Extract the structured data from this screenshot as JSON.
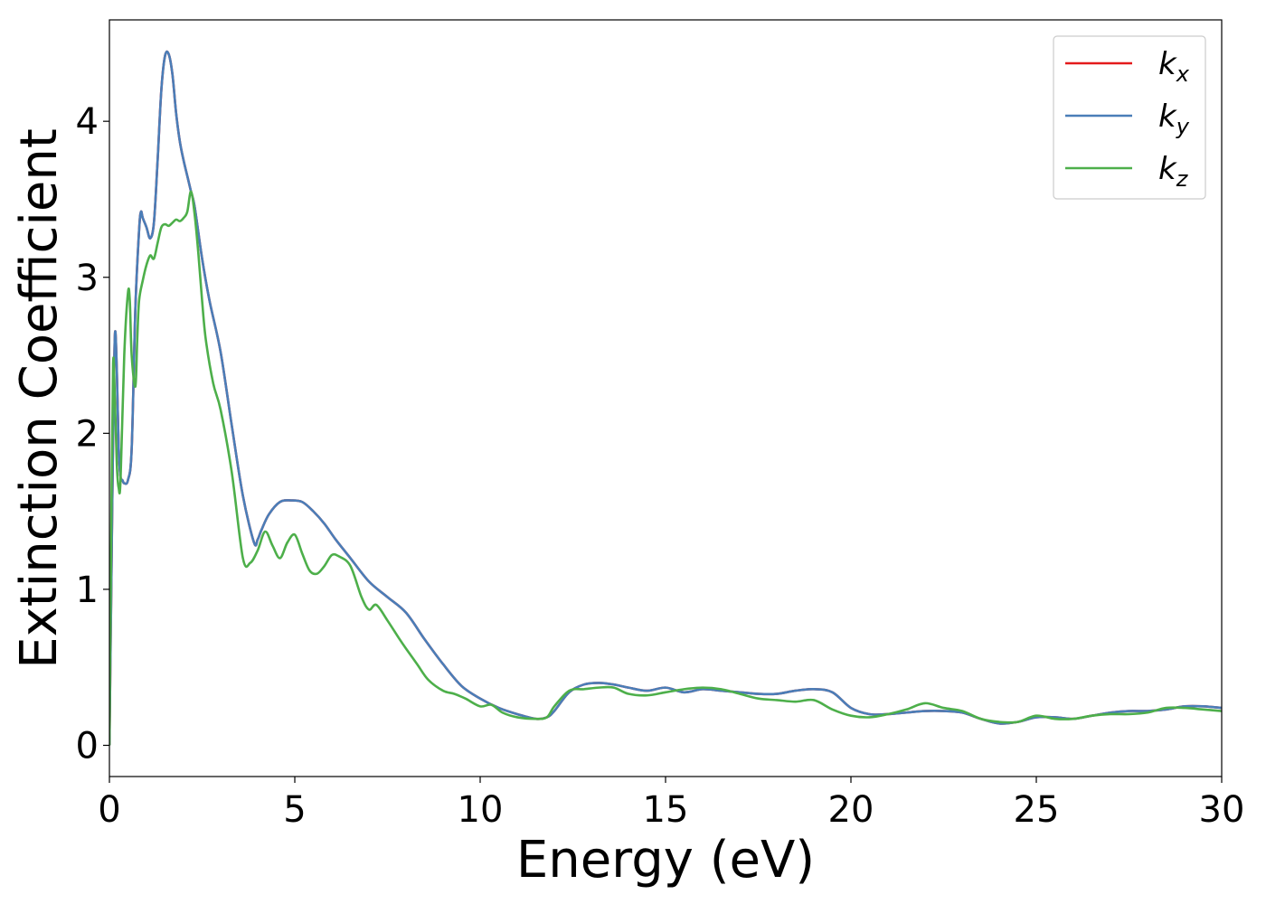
{
  "chart_data": {
    "type": "line",
    "title": "",
    "xlabel": "Energy (eV)",
    "ylabel": "Extinction Coefficient",
    "xlim": [
      0,
      30
    ],
    "ylim": [
      -0.2,
      4.65
    ],
    "xticks": [
      0,
      5,
      10,
      15,
      20,
      25,
      30
    ],
    "yticks": [
      0,
      1,
      2,
      3,
      4
    ],
    "grid": false,
    "legend_position": "top-right",
    "series": [
      {
        "name": "k_x",
        "base": "k",
        "sub": "x",
        "color": "#e41a1c",
        "x": [
          0,
          0.05,
          0.1,
          0.15,
          0.2,
          0.25,
          0.3,
          0.35,
          0.4,
          0.5,
          0.6,
          0.7,
          0.8,
          0.85,
          0.9,
          1.0,
          1.1,
          1.2,
          1.3,
          1.4,
          1.5,
          1.6,
          1.7,
          1.8,
          1.9,
          2.0,
          2.1,
          2.2,
          2.3,
          2.5,
          2.7,
          3.0,
          3.3,
          3.6,
          3.9,
          4.0,
          4.1,
          4.3,
          4.6,
          4.9,
          5.2,
          5.5,
          5.8,
          6.1,
          6.5,
          7.0,
          7.5,
          8.0,
          8.5,
          9.0,
          9.5,
          10.0,
          10.5,
          11.0,
          11.5,
          11.8,
          12.0,
          12.4,
          12.8,
          13.2,
          13.6,
          14.0,
          14.5,
          15.0,
          15.5,
          16.0,
          16.5,
          17.0,
          17.5,
          18.0,
          18.5,
          19.0,
          19.5,
          20.0,
          20.5,
          21.0,
          21.5,
          22.0,
          22.5,
          23.0,
          23.5,
          24.0,
          24.5,
          25.0,
          25.5,
          26.0,
          26.5,
          27.0,
          27.5,
          28.0,
          28.5,
          29.0,
          29.5,
          30.0
        ],
        "y": [
          0.0,
          1.0,
          2.0,
          2.64,
          2.4,
          1.9,
          1.72,
          1.7,
          1.68,
          1.7,
          1.9,
          2.8,
          3.3,
          3.42,
          3.38,
          3.32,
          3.25,
          3.35,
          3.75,
          4.2,
          4.42,
          4.43,
          4.3,
          4.05,
          3.87,
          3.75,
          3.65,
          3.55,
          3.45,
          3.12,
          2.85,
          2.52,
          2.05,
          1.6,
          1.3,
          1.32,
          1.38,
          1.48,
          1.56,
          1.57,
          1.56,
          1.5,
          1.42,
          1.32,
          1.2,
          1.05,
          0.95,
          0.85,
          0.68,
          0.52,
          0.38,
          0.3,
          0.24,
          0.2,
          0.17,
          0.18,
          0.22,
          0.34,
          0.39,
          0.4,
          0.39,
          0.37,
          0.35,
          0.37,
          0.34,
          0.36,
          0.35,
          0.34,
          0.33,
          0.33,
          0.35,
          0.36,
          0.34,
          0.24,
          0.2,
          0.2,
          0.21,
          0.22,
          0.22,
          0.21,
          0.17,
          0.14,
          0.15,
          0.18,
          0.18,
          0.17,
          0.19,
          0.21,
          0.22,
          0.22,
          0.23,
          0.25,
          0.25,
          0.24
        ]
      },
      {
        "name": "k_y",
        "base": "k",
        "sub": "y",
        "color": "#4a7eb8",
        "x": [
          0,
          0.05,
          0.1,
          0.15,
          0.2,
          0.25,
          0.3,
          0.35,
          0.4,
          0.5,
          0.6,
          0.7,
          0.8,
          0.85,
          0.9,
          1.0,
          1.1,
          1.2,
          1.3,
          1.4,
          1.5,
          1.6,
          1.7,
          1.8,
          1.9,
          2.0,
          2.1,
          2.2,
          2.3,
          2.5,
          2.7,
          3.0,
          3.3,
          3.6,
          3.9,
          4.0,
          4.1,
          4.3,
          4.6,
          4.9,
          5.2,
          5.5,
          5.8,
          6.1,
          6.5,
          7.0,
          7.5,
          8.0,
          8.5,
          9.0,
          9.5,
          10.0,
          10.5,
          11.0,
          11.5,
          11.8,
          12.0,
          12.4,
          12.8,
          13.2,
          13.6,
          14.0,
          14.5,
          15.0,
          15.5,
          16.0,
          16.5,
          17.0,
          17.5,
          18.0,
          18.5,
          19.0,
          19.5,
          20.0,
          20.5,
          21.0,
          21.5,
          22.0,
          22.5,
          23.0,
          23.5,
          24.0,
          24.5,
          25.0,
          25.5,
          26.0,
          26.5,
          27.0,
          27.5,
          28.0,
          28.5,
          29.0,
          29.5,
          30.0
        ],
        "y": [
          0.0,
          1.0,
          2.0,
          2.64,
          2.4,
          1.9,
          1.72,
          1.7,
          1.68,
          1.7,
          1.9,
          2.8,
          3.3,
          3.42,
          3.38,
          3.32,
          3.25,
          3.35,
          3.75,
          4.2,
          4.42,
          4.43,
          4.3,
          4.05,
          3.87,
          3.75,
          3.65,
          3.55,
          3.45,
          3.12,
          2.85,
          2.52,
          2.05,
          1.6,
          1.3,
          1.32,
          1.38,
          1.48,
          1.56,
          1.57,
          1.56,
          1.5,
          1.42,
          1.32,
          1.2,
          1.05,
          0.95,
          0.85,
          0.68,
          0.52,
          0.38,
          0.3,
          0.24,
          0.2,
          0.17,
          0.18,
          0.22,
          0.34,
          0.39,
          0.4,
          0.39,
          0.37,
          0.35,
          0.37,
          0.34,
          0.36,
          0.35,
          0.34,
          0.33,
          0.33,
          0.35,
          0.36,
          0.34,
          0.24,
          0.2,
          0.2,
          0.21,
          0.22,
          0.22,
          0.21,
          0.17,
          0.14,
          0.15,
          0.18,
          0.18,
          0.17,
          0.19,
          0.21,
          0.22,
          0.22,
          0.23,
          0.25,
          0.25,
          0.24
        ]
      },
      {
        "name": "k_z",
        "base": "k",
        "sub": "z",
        "color": "#4daf4a",
        "x": [
          0,
          0.05,
          0.1,
          0.15,
          0.2,
          0.25,
          0.3,
          0.4,
          0.5,
          0.55,
          0.6,
          0.7,
          0.75,
          0.8,
          0.9,
          1.0,
          1.1,
          1.2,
          1.3,
          1.4,
          1.5,
          1.6,
          1.7,
          1.8,
          1.9,
          2.0,
          2.1,
          2.2,
          2.3,
          2.4,
          2.5,
          2.6,
          2.8,
          3.0,
          3.3,
          3.6,
          3.8,
          4.0,
          4.2,
          4.4,
          4.6,
          4.8,
          5.0,
          5.2,
          5.4,
          5.6,
          5.8,
          6.0,
          6.2,
          6.5,
          6.8,
          7.0,
          7.2,
          7.5,
          7.8,
          8.0,
          8.3,
          8.6,
          9.0,
          9.3,
          9.6,
          10.0,
          10.3,
          10.6,
          11.0,
          11.5,
          11.8,
          12.0,
          12.4,
          12.8,
          13.2,
          13.6,
          14.0,
          14.5,
          15.0,
          15.5,
          16.0,
          16.5,
          17.0,
          17.5,
          18.0,
          18.5,
          19.0,
          19.5,
          20.0,
          20.5,
          21.0,
          21.5,
          22.0,
          22.5,
          23.0,
          23.5,
          24.0,
          24.5,
          25.0,
          25.5,
          26.0,
          26.5,
          27.0,
          27.5,
          28.0,
          28.5,
          29.0,
          29.5,
          30.0
        ],
        "y": [
          0.0,
          1.4,
          2.45,
          2.2,
          1.8,
          1.65,
          1.7,
          2.5,
          2.9,
          2.85,
          2.5,
          2.3,
          2.6,
          2.85,
          2.98,
          3.08,
          3.14,
          3.12,
          3.22,
          3.32,
          3.34,
          3.33,
          3.35,
          3.37,
          3.36,
          3.38,
          3.42,
          3.55,
          3.4,
          3.15,
          2.85,
          2.6,
          2.32,
          2.15,
          1.75,
          1.2,
          1.17,
          1.25,
          1.37,
          1.28,
          1.2,
          1.3,
          1.35,
          1.23,
          1.12,
          1.1,
          1.15,
          1.22,
          1.21,
          1.15,
          0.95,
          0.87,
          0.9,
          0.8,
          0.69,
          0.62,
          0.52,
          0.42,
          0.35,
          0.33,
          0.3,
          0.25,
          0.26,
          0.21,
          0.18,
          0.17,
          0.18,
          0.25,
          0.35,
          0.36,
          0.37,
          0.37,
          0.33,
          0.32,
          0.34,
          0.36,
          0.37,
          0.36,
          0.33,
          0.3,
          0.29,
          0.28,
          0.29,
          0.23,
          0.19,
          0.18,
          0.2,
          0.23,
          0.27,
          0.24,
          0.22,
          0.17,
          0.15,
          0.15,
          0.19,
          0.17,
          0.17,
          0.19,
          0.2,
          0.2,
          0.21,
          0.24,
          0.24,
          0.23,
          0.22
        ]
      }
    ]
  }
}
